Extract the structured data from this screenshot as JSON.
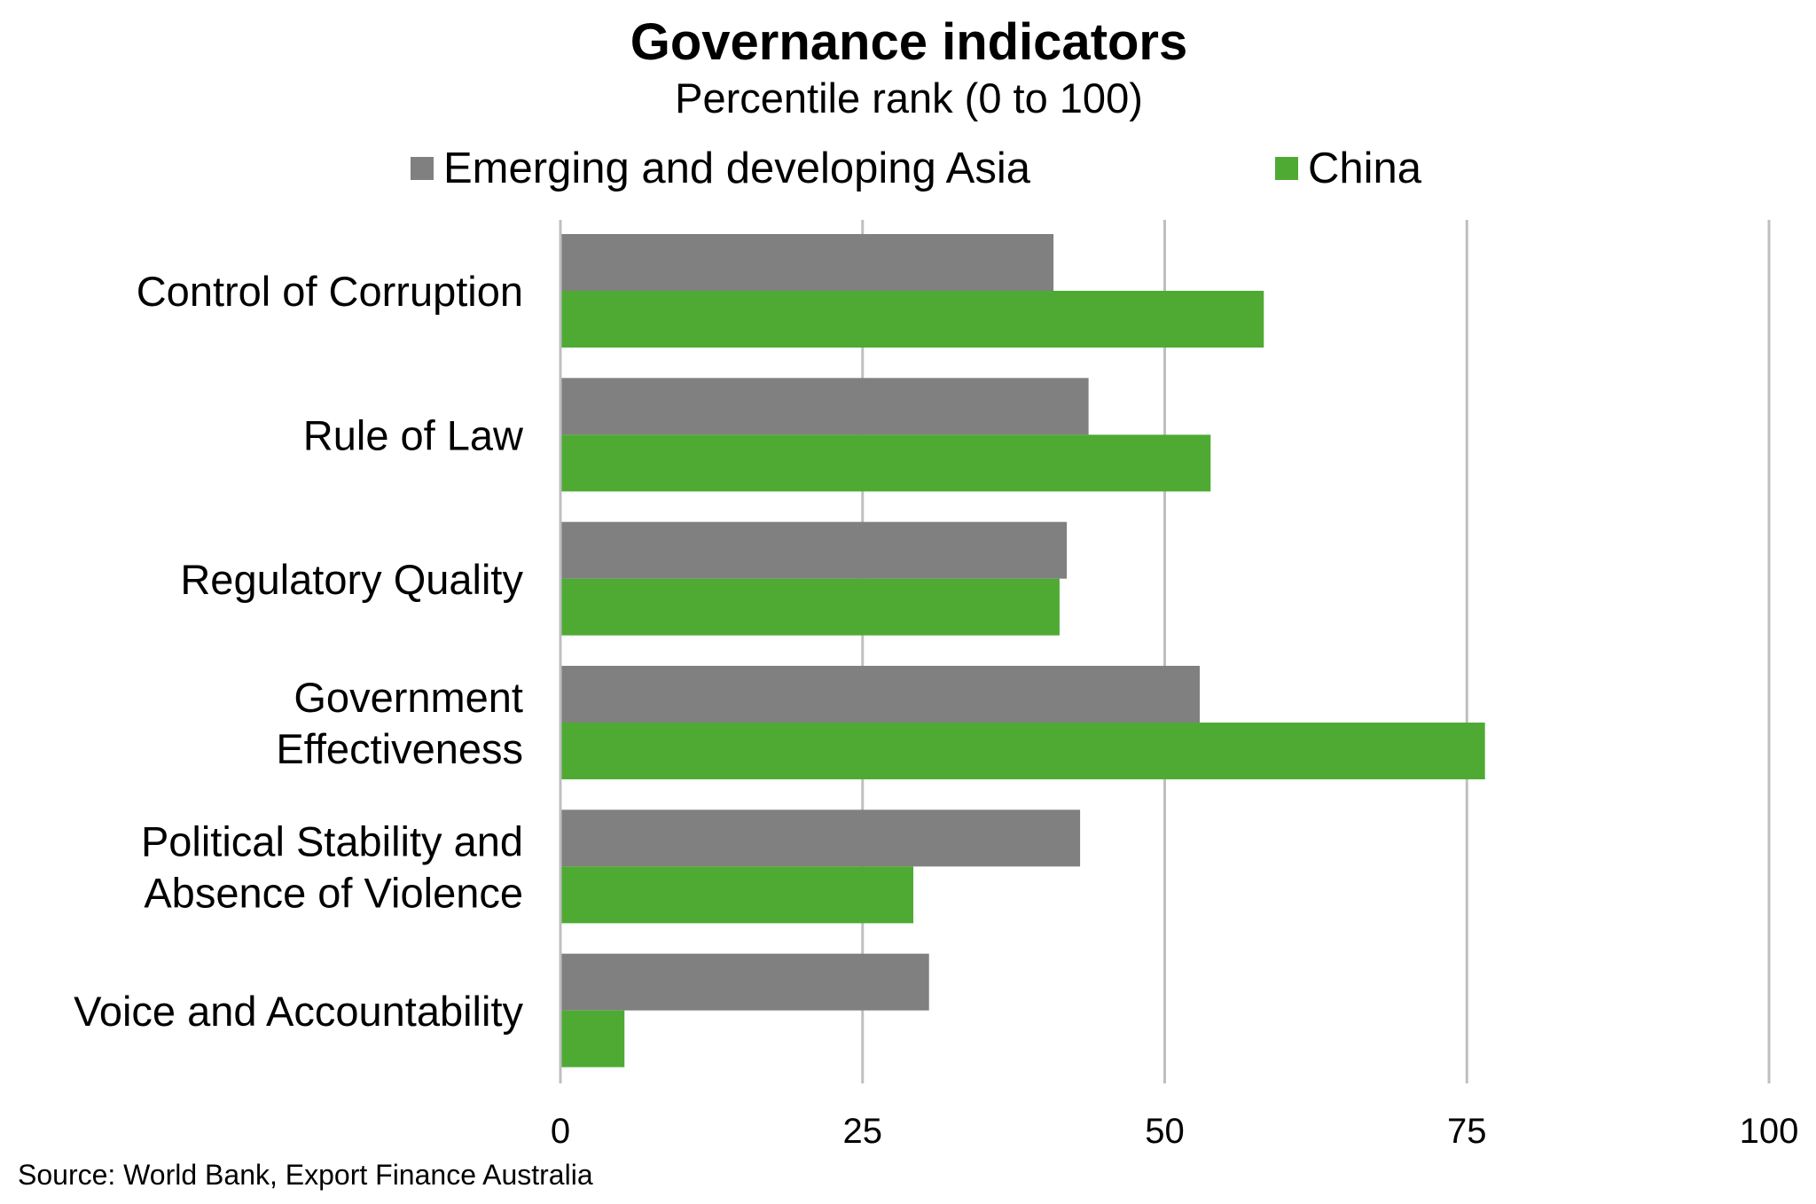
{
  "chart_data": {
    "type": "bar",
    "orientation": "horizontal",
    "title": "Governance indicators",
    "subtitle": "Percentile rank (0 to 100)",
    "categories": [
      "Control of Corruption",
      "Rule of Law",
      "Regulatory Quality",
      "Government Effectiveness",
      "Political Stability and Absence of Violence",
      "Voice and Accountability"
    ],
    "category_lines": [
      [
        "Control of Corruption"
      ],
      [
        "Rule of Law"
      ],
      [
        "Regulatory Quality"
      ],
      [
        "Government",
        "Effectiveness"
      ],
      [
        "Political Stability and",
        "Absence of Violence"
      ],
      [
        "Voice and Accountability"
      ]
    ],
    "series": [
      {
        "name": "Emerging and developing Asia",
        "color": "#808080",
        "values": [
          40.8,
          43.7,
          41.9,
          52.9,
          43.0,
          30.5
        ]
      },
      {
        "name": "China",
        "color": "#4FAA33",
        "values": [
          58.2,
          53.8,
          41.3,
          76.5,
          29.2,
          5.3
        ]
      }
    ],
    "xlim": [
      0,
      100
    ],
    "xticks": [
      0,
      25,
      50,
      75,
      100
    ],
    "xtick_labels": [
      "0",
      "25",
      "50",
      "75",
      "100"
    ],
    "grid": true,
    "legend_position": "top",
    "source": "Source: World Bank, Export Finance Australia"
  }
}
